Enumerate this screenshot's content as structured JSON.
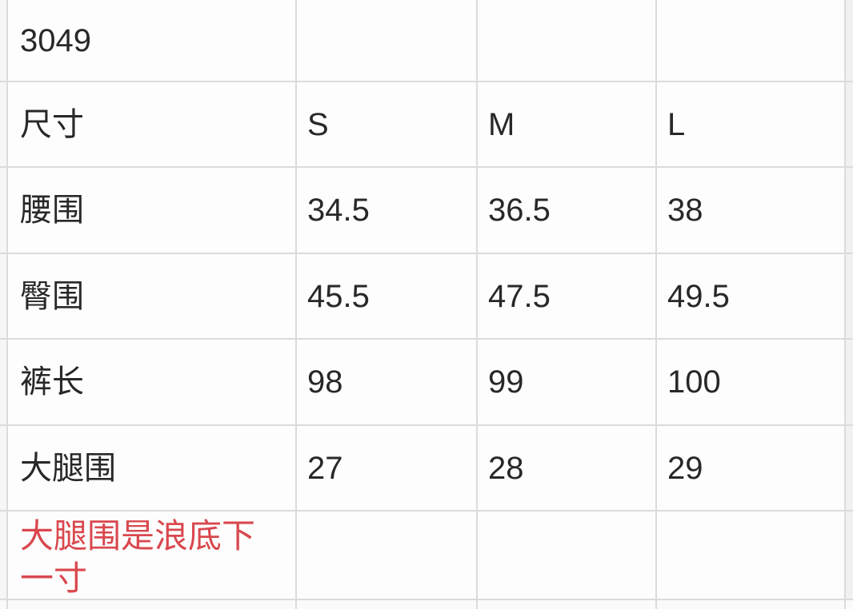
{
  "colors": {
    "note_red": "#d9484e",
    "grid_line": "#dbdbdb",
    "text": "#282828",
    "cell_background": "#fdfdfd"
  },
  "table": {
    "product_code": "3049",
    "header": {
      "label": "尺寸",
      "sizes": [
        "S",
        "M",
        "L"
      ]
    },
    "rows": [
      {
        "label": "腰围",
        "values": [
          "34.5",
          "36.5",
          "38"
        ]
      },
      {
        "label": "臀围",
        "values": [
          "45.5",
          "47.5",
          "49.5"
        ]
      },
      {
        "label": "裤长",
        "values": [
          "98",
          "99",
          "100"
        ]
      },
      {
        "label": "大腿围",
        "values": [
          "27",
          "28",
          "29"
        ]
      }
    ],
    "note": "大腿围是浪底下一寸"
  }
}
